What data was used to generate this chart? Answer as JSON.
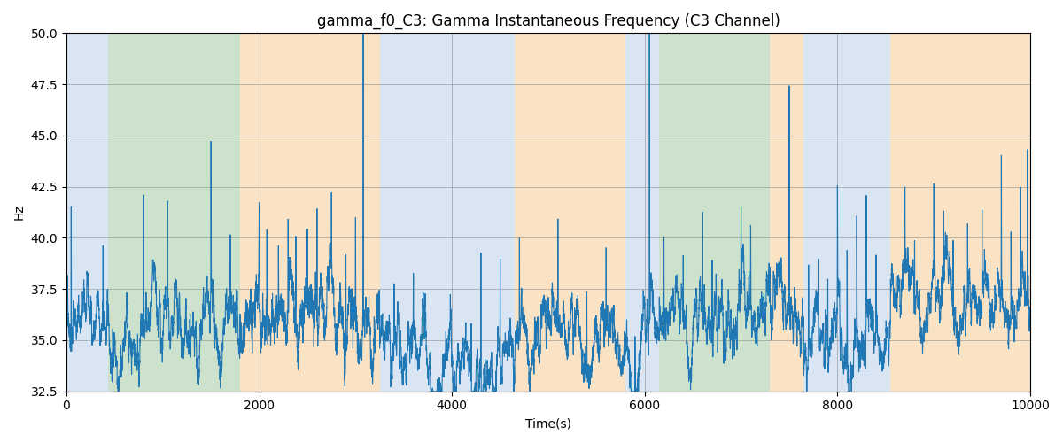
{
  "title": "gamma_f0_C3: Gamma Instantaneous Frequency (C3 Channel)",
  "xlabel": "Time(s)",
  "ylabel": "Hz",
  "xlim": [
    0,
    10000
  ],
  "ylim": [
    32.5,
    50.0
  ],
  "yticks": [
    32.5,
    35.0,
    37.5,
    40.0,
    42.5,
    45.0,
    47.5,
    50.0
  ],
  "line_color": "#1f77b4",
  "line_width": 0.8,
  "bg_regions": [
    {
      "xmin": 0,
      "xmax": 430,
      "color": "#aec6e8",
      "alpha": 0.45
    },
    {
      "xmin": 430,
      "xmax": 1800,
      "color": "#90c090",
      "alpha": 0.45
    },
    {
      "xmin": 1800,
      "xmax": 3250,
      "color": "#f5c080",
      "alpha": 0.45
    },
    {
      "xmin": 3250,
      "xmax": 4650,
      "color": "#aec6e8",
      "alpha": 0.45
    },
    {
      "xmin": 4650,
      "xmax": 5800,
      "color": "#f5c080",
      "alpha": 0.45
    },
    {
      "xmin": 5800,
      "xmax": 6150,
      "color": "#aec6e8",
      "alpha": 0.45
    },
    {
      "xmin": 6150,
      "xmax": 7300,
      "color": "#90c090",
      "alpha": 0.45
    },
    {
      "xmin": 7300,
      "xmax": 7650,
      "color": "#f5c080",
      "alpha": 0.45
    },
    {
      "xmin": 7650,
      "xmax": 8550,
      "color": "#aec6e8",
      "alpha": 0.45
    },
    {
      "xmin": 8550,
      "xmax": 10000,
      "color": "#f5c080",
      "alpha": 0.45
    }
  ],
  "seed": 42,
  "n_points": 10000
}
